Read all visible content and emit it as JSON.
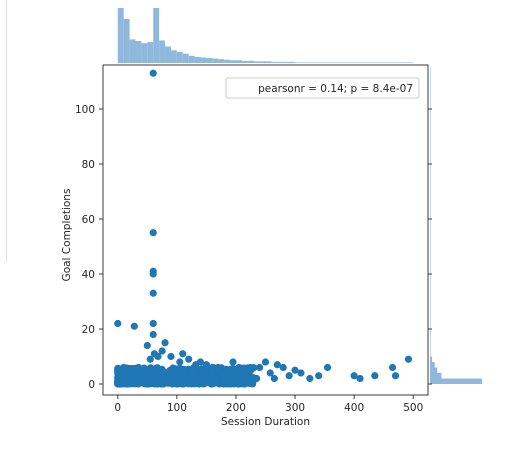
{
  "chart_data": {
    "type": "scatter",
    "title": "",
    "xlabel": "Session Duration",
    "ylabel": "Goal Completions",
    "xlim": [
      -25,
      525
    ],
    "ylim": [
      -4,
      116
    ],
    "x_ticks": [
      0,
      100,
      200,
      300,
      400,
      500
    ],
    "y_ticks": [
      0,
      20,
      40,
      60,
      80,
      100
    ],
    "legend": {
      "text": "pearsonr = 0.14; p = 8.4e-07",
      "placement": "top-right"
    },
    "point_color": "#1f77b4",
    "hist_color": "#8fb8dc",
    "grid": false,
    "points": [
      {
        "x": 60,
        "y": 113
      },
      {
        "x": 60,
        "y": 55
      },
      {
        "x": 60,
        "y": 41
      },
      {
        "x": 60,
        "y": 40
      },
      {
        "x": 60,
        "y": 33
      },
      {
        "x": 60,
        "y": 22
      },
      {
        "x": 60,
        "y": 18
      },
      {
        "x": 0,
        "y": 22
      },
      {
        "x": 28,
        "y": 21
      },
      {
        "x": 50,
        "y": 14
      },
      {
        "x": 80,
        "y": 15
      },
      {
        "x": 75,
        "y": 12
      },
      {
        "x": 62,
        "y": 11
      },
      {
        "x": 68,
        "y": 10
      },
      {
        "x": 55,
        "y": 9
      },
      {
        "x": 90,
        "y": 10
      },
      {
        "x": 105,
        "y": 8
      },
      {
        "x": 110,
        "y": 11
      },
      {
        "x": 120,
        "y": 9
      },
      {
        "x": 132,
        "y": 7
      },
      {
        "x": 140,
        "y": 8
      },
      {
        "x": 150,
        "y": 7
      },
      {
        "x": 160,
        "y": 6
      },
      {
        "x": 170,
        "y": 6
      },
      {
        "x": 185,
        "y": 5
      },
      {
        "x": 195,
        "y": 8
      },
      {
        "x": 205,
        "y": 5
      },
      {
        "x": 215,
        "y": 4
      },
      {
        "x": 225,
        "y": 5
      },
      {
        "x": 240,
        "y": 6
      },
      {
        "x": 250,
        "y": 8
      },
      {
        "x": 258,
        "y": 4
      },
      {
        "x": 270,
        "y": 7
      },
      {
        "x": 280,
        "y": 6
      },
      {
        "x": 290,
        "y": 3
      },
      {
        "x": 300,
        "y": 5
      },
      {
        "x": 310,
        "y": 4
      },
      {
        "x": 325,
        "y": 2
      },
      {
        "x": 340,
        "y": 3
      },
      {
        "x": 355,
        "y": 6
      },
      {
        "x": 400,
        "y": 3
      },
      {
        "x": 410,
        "y": 2
      },
      {
        "x": 435,
        "y": 3
      },
      {
        "x": 465,
        "y": 6
      },
      {
        "x": 470,
        "y": 3
      },
      {
        "x": 492,
        "y": 9
      },
      {
        "x": 265,
        "y": 2
      },
      {
        "x": 235,
        "y": 2
      },
      {
        "x": 200,
        "y": 2
      },
      {
        "x": 180,
        "y": 3
      },
      {
        "x": 125,
        "y": 4
      },
      {
        "x": 95,
        "y": 5
      },
      {
        "x": 35,
        "y": 6
      },
      {
        "x": 20,
        "y": 5
      },
      {
        "x": 10,
        "y": 6
      },
      {
        "x": 5,
        "y": 3
      },
      {
        "x": 15,
        "y": 2
      },
      {
        "x": 45,
        "y": 3
      },
      {
        "x": 85,
        "y": 2
      },
      {
        "x": 145,
        "y": 2
      }
    ],
    "dense_band": {
      "x_range": [
        0,
        230
      ],
      "y_range": [
        0,
        6
      ],
      "count": 700
    },
    "x_hist": {
      "bins": [
        0,
        10,
        20,
        30,
        40,
        50,
        60,
        70,
        80,
        90,
        100,
        110,
        120,
        130,
        140,
        150,
        160,
        170,
        180,
        190,
        200,
        210,
        220,
        230,
        240,
        250,
        260,
        270,
        280,
        290,
        300,
        350,
        400,
        450,
        500
      ],
      "counts": [
        100,
        80,
        43,
        40,
        36,
        38,
        100,
        41,
        30,
        23,
        20,
        17,
        13,
        11,
        10,
        9,
        8,
        7,
        6,
        5,
        5,
        4,
        4,
        3,
        3,
        3,
        2,
        2,
        2,
        2,
        1,
        1,
        1,
        1
      ]
    },
    "y_hist": {
      "bins": [
        0,
        2,
        4,
        6,
        8,
        10,
        115
      ],
      "counts": [
        100,
        22,
        14,
        9,
        4,
        1
      ]
    }
  }
}
